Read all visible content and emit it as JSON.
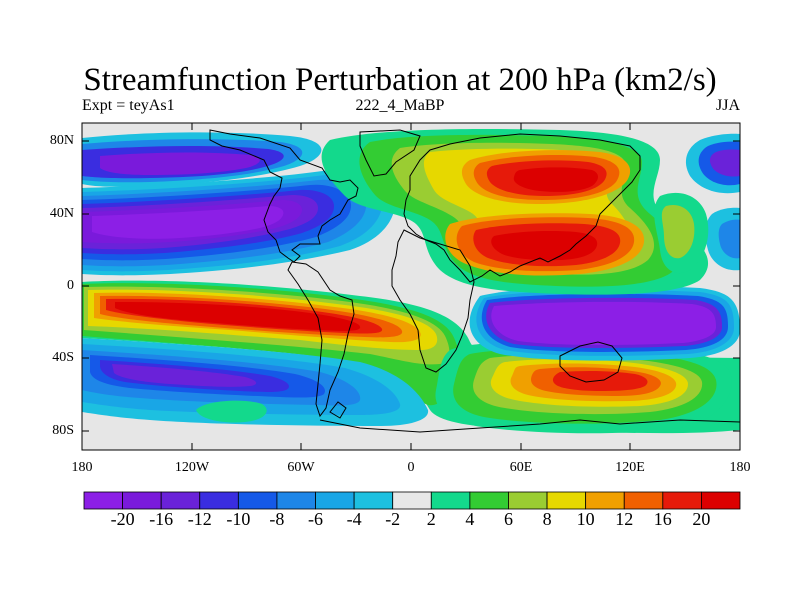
{
  "title": "Streamfunction Perturbation at 200 hPa (km2/s)",
  "left_string": "Expt = teyAs1",
  "center_string": "222_4_MaBP",
  "right_string": "JJA",
  "lat_labels": [
    "80N",
    "40N",
    "0",
    "40S",
    "80S"
  ],
  "lon_labels": [
    "180",
    "120W",
    "60W",
    "0",
    "60E",
    "120E",
    "180"
  ],
  "colorbar": {
    "labels": [
      "-20",
      "-16",
      "-12",
      "-10",
      "-8",
      "-6",
      "-4",
      "-2",
      "2",
      "4",
      "6",
      "8",
      "10",
      "12",
      "16",
      "20"
    ],
    "colors": [
      "#8C1FE6",
      "#7A1ADB",
      "#6A22D9",
      "#3A2DE0",
      "#1559E8",
      "#1E86E8",
      "#19A6E6",
      "#1DC0E0",
      "#E8E8E8",
      "#13D98C",
      "#33CC33",
      "#9ACD32",
      "#E6D800",
      "#F0A000",
      "#F06000",
      "#E61A0A",
      "#DC0000"
    ]
  },
  "colors": {
    "background": "#FFFFFF",
    "no_data": "#E6E6E6",
    "coastline": "#000000"
  }
}
